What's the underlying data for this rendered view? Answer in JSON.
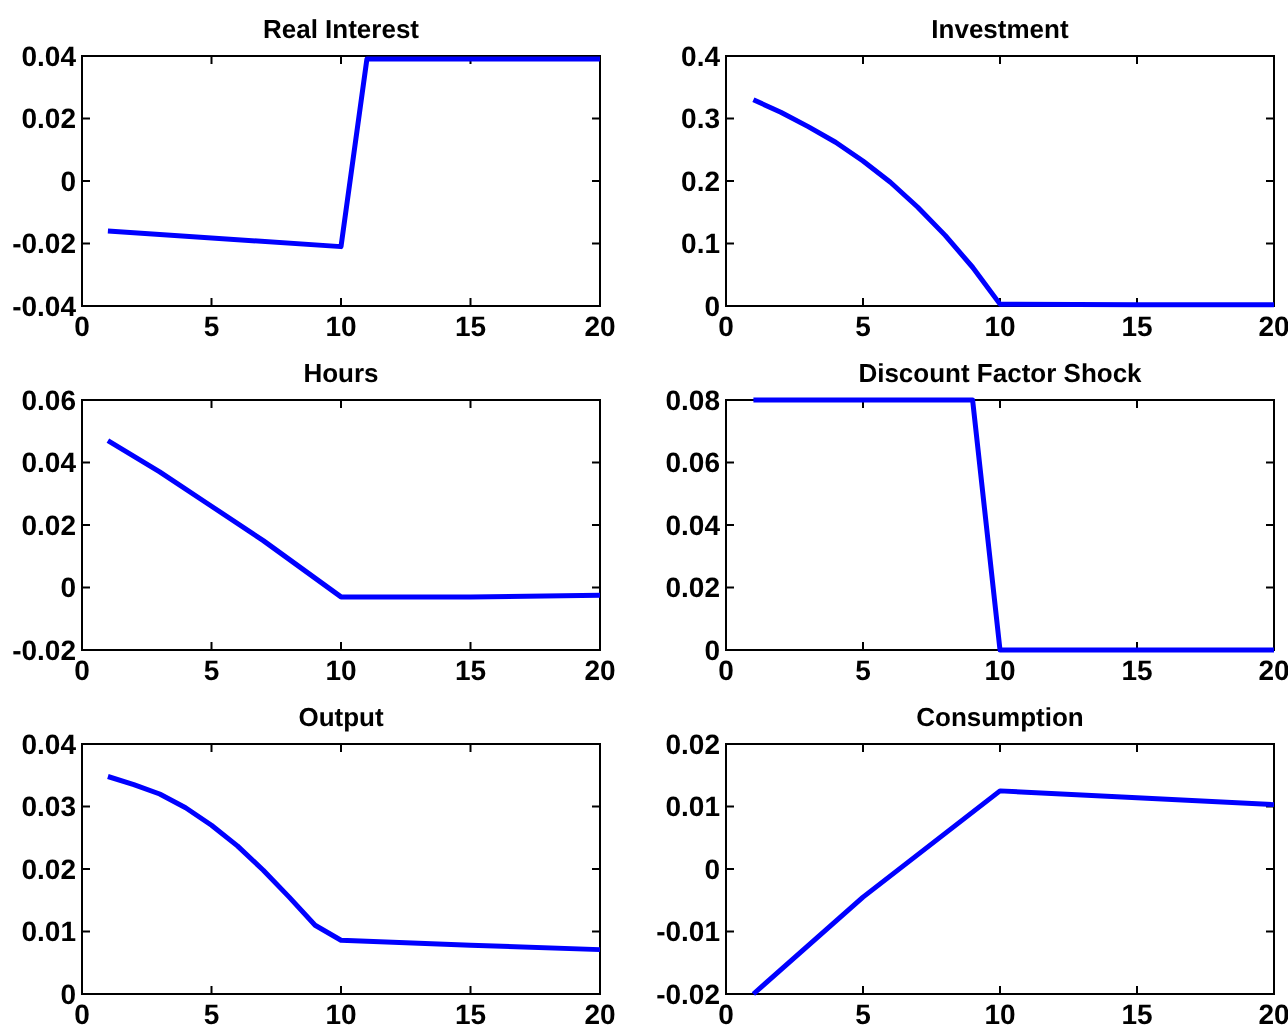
{
  "chart_data": [
    {
      "type": "line",
      "title": "Real Interest",
      "xlim": [
        0,
        20
      ],
      "xticks": [
        0,
        5,
        10,
        15,
        20
      ],
      "ylim": [
        -0.04,
        0.04
      ],
      "yticks": [
        -0.04,
        -0.02,
        0,
        0.02,
        0.04
      ],
      "series": [
        {
          "color": "#0000ff",
          "x": [
            1,
            10,
            11,
            20
          ],
          "values": [
            -0.016,
            -0.021,
            0.039,
            0.039
          ]
        }
      ]
    },
    {
      "type": "line",
      "title": "Investment",
      "xlim": [
        0,
        20
      ],
      "xticks": [
        0,
        5,
        10,
        15,
        20
      ],
      "ylim": [
        0,
        0.4
      ],
      "yticks": [
        0,
        0.1,
        0.2,
        0.3,
        0.4
      ],
      "series": [
        {
          "color": "#0000ff",
          "x": [
            1,
            2,
            3,
            4,
            5,
            6,
            7,
            8,
            9,
            10,
            15,
            20
          ],
          "values": [
            0.33,
            0.31,
            0.287,
            0.262,
            0.232,
            0.198,
            0.158,
            0.113,
            0.062,
            0.003,
            0.002,
            0.002
          ]
        }
      ]
    },
    {
      "type": "line",
      "title": "Hours",
      "xlim": [
        0,
        20
      ],
      "xticks": [
        0,
        5,
        10,
        15,
        20
      ],
      "ylim": [
        -0.02,
        0.06
      ],
      "yticks": [
        -0.02,
        0,
        0.02,
        0.04,
        0.06
      ],
      "series": [
        {
          "color": "#0000ff",
          "x": [
            1,
            3,
            5,
            7,
            9,
            10,
            15,
            20
          ],
          "values": [
            0.047,
            0.037,
            0.026,
            0.015,
            0.003,
            -0.003,
            -0.003,
            -0.0025
          ]
        }
      ]
    },
    {
      "type": "line",
      "title": "Discount Factor Shock",
      "xlim": [
        0,
        20
      ],
      "xticks": [
        0,
        5,
        10,
        15,
        20
      ],
      "ylim": [
        0,
        0.08
      ],
      "yticks": [
        0,
        0.02,
        0.04,
        0.06,
        0.08
      ],
      "series": [
        {
          "color": "#0000ff",
          "x": [
            1,
            9,
            10,
            20
          ],
          "values": [
            0.08,
            0.08,
            0,
            0
          ]
        }
      ]
    },
    {
      "type": "line",
      "title": "Output",
      "xlim": [
        0,
        20
      ],
      "xticks": [
        0,
        5,
        10,
        15,
        20
      ],
      "ylim": [
        0,
        0.04
      ],
      "yticks": [
        0,
        0.01,
        0.02,
        0.03,
        0.04
      ],
      "series": [
        {
          "color": "#0000ff",
          "x": [
            1,
            2,
            3,
            4,
            5,
            6,
            7,
            8,
            9,
            10,
            15,
            20
          ],
          "values": [
            0.0348,
            0.0335,
            0.032,
            0.0298,
            0.027,
            0.0237,
            0.0198,
            0.0155,
            0.011,
            0.0086,
            0.0078,
            0.0071
          ]
        }
      ]
    },
    {
      "type": "line",
      "title": "Consumption",
      "xlim": [
        0,
        20
      ],
      "xticks": [
        0,
        5,
        10,
        15,
        20
      ],
      "ylim": [
        -0.02,
        0.02
      ],
      "yticks": [
        -0.02,
        -0.01,
        0,
        0.01,
        0.02
      ],
      "series": [
        {
          "color": "#0000ff",
          "x": [
            1,
            5,
            10,
            15,
            20
          ],
          "values": [
            -0.02,
            -0.0045,
            0.0125,
            0.0114,
            0.0103
          ]
        }
      ]
    }
  ]
}
